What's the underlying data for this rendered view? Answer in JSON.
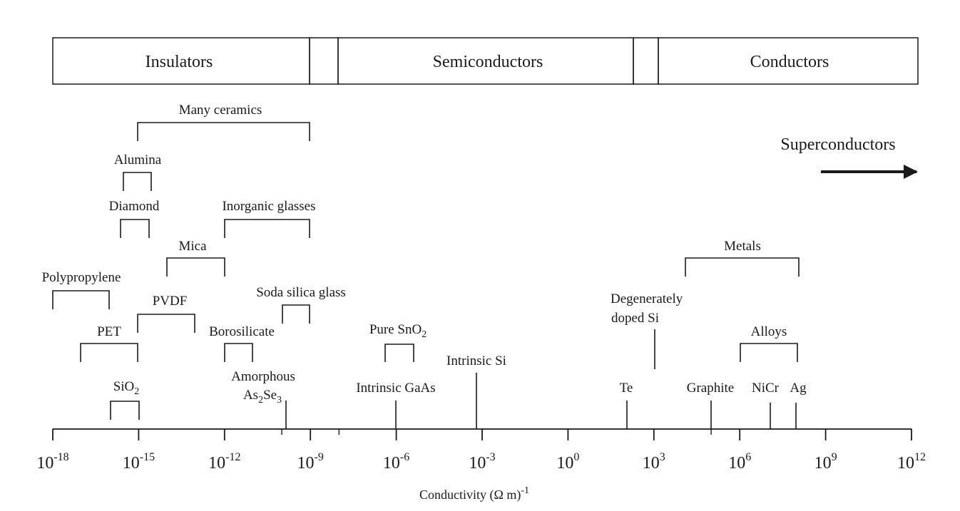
{
  "bands": [
    {
      "label": "Insulators"
    },
    {
      "label": ""
    },
    {
      "label": "Semiconductors"
    },
    {
      "label": ""
    },
    {
      "label": "Conductors"
    }
  ],
  "superconductors": {
    "label": "Superconductors"
  },
  "axis": {
    "title": "Conductivity (Ω m)",
    "title_exponent": "-1",
    "base": "10",
    "range": [
      -18,
      12
    ],
    "labeled_exponents": [
      -18,
      -15,
      -12,
      -9,
      -6,
      -3,
      0,
      3,
      6,
      9,
      12
    ],
    "minor_ticks": [
      -10,
      -8,
      5
    ]
  },
  "materials": [
    {
      "name": "Many ceramics",
      "range": [
        -15,
        -9
      ]
    },
    {
      "name": "Alumina",
      "range": [
        -15.5,
        -14.5
      ]
    },
    {
      "name": "Diamond",
      "range": [
        -15.6,
        -14.6
      ]
    },
    {
      "name": "Inorganic glasses",
      "range": [
        -12,
        -9
      ]
    },
    {
      "name": "Mica",
      "range": [
        -14,
        -12
      ]
    },
    {
      "name": "Polypropylene",
      "range": [
        -18,
        -16
      ]
    },
    {
      "name": "Soda silica glass",
      "range": [
        -10,
        -9
      ]
    },
    {
      "name": "PVDF",
      "range": [
        -15,
        -13
      ]
    },
    {
      "name": "PET",
      "range": [
        -17,
        -15
      ]
    },
    {
      "name": "Borosilicate",
      "range": [
        -12,
        -11
      ]
    },
    {
      "name": "SiO",
      "sub": "2",
      "range": [
        -16,
        -15
      ]
    },
    {
      "name": "Pure SnO",
      "sub": "2",
      "range": [
        -6.4,
        -5.4
      ]
    },
    {
      "name": "Metals",
      "range": [
        4,
        8
      ]
    },
    {
      "name": "Alloys",
      "range": [
        6,
        8
      ]
    }
  ],
  "points": [
    {
      "line1": "Amorphous",
      "line2": "As",
      "sub1": "2",
      "mid": "Se",
      "sub2": "3",
      "value": -10.8
    },
    {
      "name": "Intrinsic GaAs",
      "value": -6
    },
    {
      "name": "Intrinsic Si",
      "value": -3.2
    },
    {
      "line1": "Degenerately",
      "line2": "doped Si",
      "value": 3
    },
    {
      "name": "Te",
      "value": 2
    },
    {
      "name": "Graphite",
      "value": 5
    },
    {
      "name": "NiCr",
      "value": 7
    },
    {
      "name": "Ag",
      "value": 8
    }
  ]
}
